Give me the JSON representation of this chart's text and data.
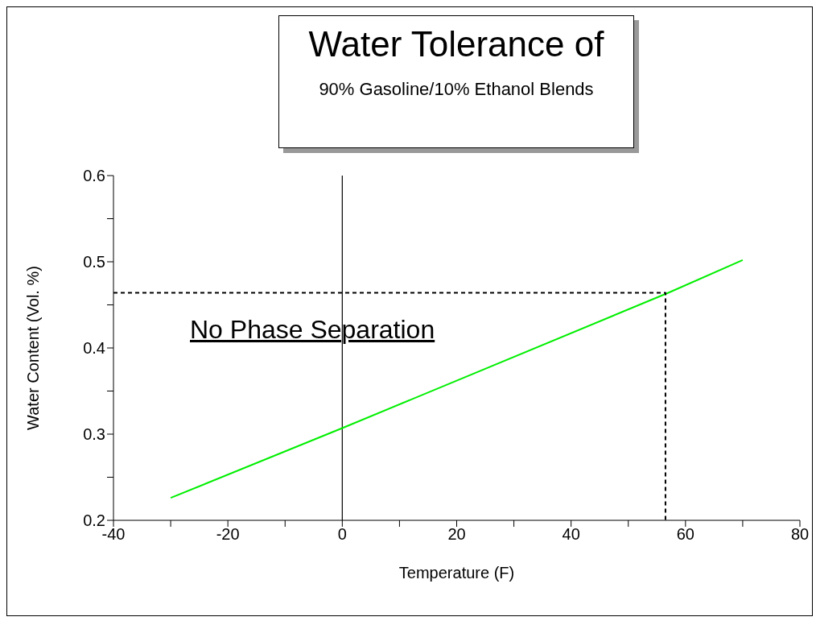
{
  "chart_data": {
    "type": "line",
    "title": "Water Tolerance of",
    "subtitle": "90% Gasoline/10% Ethanol Blends",
    "xlabel": "Temperature (F)",
    "ylabel": "Water Content (Vol. %)",
    "xlim": [
      -40,
      80
    ],
    "xticks": [
      -40,
      {
        "value": -30,
        "label": null
      },
      -20,
      {
        "value": -10,
        "label": null
      },
      0,
      {
        "value": 10,
        "label": null
      },
      20,
      {
        "value": 30,
        "label": null
      },
      40,
      {
        "value": 50,
        "label": null
      },
      60,
      {
        "value": 70,
        "label": null
      },
      80
    ],
    "ylim": [
      0.2,
      0.6
    ],
    "yticks": [
      0.2,
      {
        "value": 0.25,
        "label": null
      },
      0.3,
      {
        "value": 0.35,
        "label": null
      },
      0.4,
      {
        "value": 0.45,
        "label": null
      },
      0.5,
      {
        "value": 0.55,
        "label": null
      },
      0.6
    ],
    "series": [
      {
        "color": "#00ee00",
        "x": [
          -30,
          0,
          57,
          70
        ],
        "values": [
          0.226,
          0.307,
          0.464,
          0.502
        ],
        "line_style": "solid"
      },
      {
        "color": "#000000",
        "x": [
          -40,
          56.5,
          56.5
        ],
        "values": [
          0.464,
          0.464,
          0.2
        ],
        "line_style": "dashed"
      }
    ],
    "ref_lines": [
      {
        "axis": "x",
        "value": 0,
        "color": "#000000",
        "line_style": "solid"
      }
    ],
    "annotations": [
      "No Phase Separation"
    ],
    "grid": false,
    "legend": false,
    "marker": "none"
  }
}
